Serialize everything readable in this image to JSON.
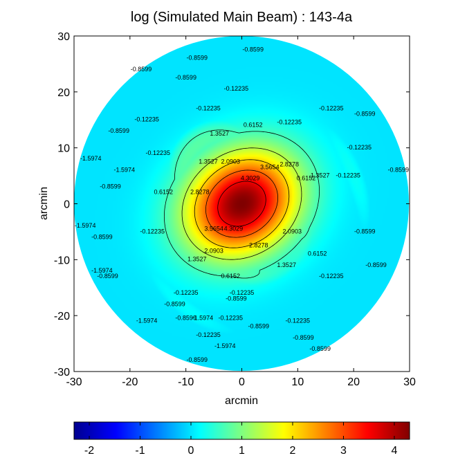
{
  "chart_data": {
    "type": "heatmap",
    "title": "log (Simulated Main Beam) : 143-4a",
    "xlabel": "arcmin",
    "ylabel": "arcmin",
    "xlim": [
      -30,
      30
    ],
    "ylim": [
      -30,
      30
    ],
    "xticks": [
      "-30",
      "-20",
      "-10",
      "0",
      "10",
      "20",
      "30"
    ],
    "yticks": [
      "30",
      "20",
      "10",
      "0",
      "-10",
      "-20",
      "-30"
    ],
    "colorbar": {
      "range": [
        -2.3,
        4.3
      ],
      "ticks": [
        "-2",
        "-1",
        "0",
        "1",
        "2",
        "3",
        "4"
      ],
      "colormap": "jet",
      "placement": "bottom"
    },
    "beam": {
      "peak": 4.3,
      "center": [
        0,
        0
      ],
      "radius_arcmin": 30,
      "contour_levels": [
        -1.5974,
        -0.8599,
        -0.12235,
        0.6152,
        1.3527,
        2.0903,
        2.8278,
        3.5654,
        4.3029
      ]
    },
    "contour_labels": [
      {
        "text": "4.3029",
        "x": 1.5,
        "y": 4.5
      },
      {
        "text": "4.3029",
        "x": -1.5,
        "y": -4.5
      },
      {
        "text": "3.5654",
        "x": 5,
        "y": 6.5
      },
      {
        "text": "3.5654",
        "x": -5,
        "y": -4.5
      },
      {
        "text": "2.8278",
        "x": 8.5,
        "y": 7
      },
      {
        "text": "2.8278",
        "x": -7.5,
        "y": 2
      },
      {
        "text": "2.8278",
        "x": 3,
        "y": -7.5
      },
      {
        "text": "2.0903",
        "x": -2,
        "y": 7.5
      },
      {
        "text": "2.0903",
        "x": -5,
        "y": -8.5
      },
      {
        "text": "2.0903",
        "x": 9,
        "y": -5
      },
      {
        "text": "1.3527",
        "x": -4,
        "y": 12.5
      },
      {
        "text": "1.3527",
        "x": -6,
        "y": 7.5
      },
      {
        "text": "1.3527",
        "x": 14,
        "y": 5
      },
      {
        "text": "1.3527",
        "x": -8,
        "y": -10
      },
      {
        "text": "1.3527",
        "x": 8,
        "y": -11
      },
      {
        "text": "0.6152",
        "x": 2,
        "y": 14
      },
      {
        "text": "0.6152",
        "x": -14,
        "y": 2
      },
      {
        "text": "0.6152",
        "x": 11.5,
        "y": 4.5
      },
      {
        "text": "0.6152",
        "x": -2,
        "y": -13
      },
      {
        "text": "0.6152",
        "x": 13.5,
        "y": -9
      },
      {
        "text": "-0.12235",
        "x": -1,
        "y": 20.5
      },
      {
        "text": "-0.12235",
        "x": -6,
        "y": 17
      },
      {
        "text": "-0.12235",
        "x": -17,
        "y": 15
      },
      {
        "text": "-0.12235",
        "x": -15,
        "y": 9
      },
      {
        "text": "-0.12235",
        "x": 16,
        "y": 17
      },
      {
        "text": "-0.12235",
        "x": 8.5,
        "y": 14.5
      },
      {
        "text": "-0.12235",
        "x": 21,
        "y": 10
      },
      {
        "text": "-0.12235",
        "x": 19,
        "y": 5
      },
      {
        "text": "-0.12235",
        "x": -16,
        "y": -5
      },
      {
        "text": "-0.12235",
        "x": 16,
        "y": -13
      },
      {
        "text": "-0.12235",
        "x": -10,
        "y": -16
      },
      {
        "text": "-0.12235",
        "x": 0,
        "y": -16
      },
      {
        "text": "-0.12235",
        "x": -2,
        "y": -20.5
      },
      {
        "text": "-0.12235",
        "x": 10,
        "y": -21
      },
      {
        "text": "-0.12235",
        "x": -6,
        "y": -23.5
      },
      {
        "text": "-0.8599",
        "x": 2,
        "y": 27.5
      },
      {
        "text": "-0.8599",
        "x": -8,
        "y": 26
      },
      {
        "text": "-0.8599",
        "x": -18,
        "y": 24
      },
      {
        "text": "-0.8599",
        "x": -10,
        "y": 22.5
      },
      {
        "text": "-0.8599",
        "x": -22,
        "y": 13
      },
      {
        "text": "-0.8599",
        "x": -23.5,
        "y": 3
      },
      {
        "text": "-0.8599",
        "x": -25,
        "y": -6
      },
      {
        "text": "-0.8599",
        "x": -24,
        "y": -13
      },
      {
        "text": "-0.8599",
        "x": 22,
        "y": 16
      },
      {
        "text": "-0.8599",
        "x": 28,
        "y": 6
      },
      {
        "text": "-0.8599",
        "x": 22,
        "y": -5
      },
      {
        "text": "-0.8599",
        "x": 24,
        "y": -11
      },
      {
        "text": "-0.8599",
        "x": -12,
        "y": -18
      },
      {
        "text": "-0.8599",
        "x": -1,
        "y": -17
      },
      {
        "text": "-0.8599",
        "x": 3,
        "y": -22
      },
      {
        "text": "-0.8599",
        "x": -10,
        "y": -20.5
      },
      {
        "text": "-0.8599",
        "x": 11,
        "y": -24
      },
      {
        "text": "-0.8599",
        "x": -8,
        "y": -28
      },
      {
        "text": "-0.8599",
        "x": 14,
        "y": -26
      },
      {
        "text": "-1.5974",
        "x": -27,
        "y": 8
      },
      {
        "text": "-1.5974",
        "x": -28,
        "y": -4
      },
      {
        "text": "-1.5974",
        "x": -21,
        "y": 6
      },
      {
        "text": "-1.5974",
        "x": -25,
        "y": -12
      },
      {
        "text": "-1.5974",
        "x": -7,
        "y": -20.5
      },
      {
        "text": "-1.5974",
        "x": -17,
        "y": -21
      },
      {
        "text": "-1.5974",
        "x": -3,
        "y": -25.5
      }
    ]
  },
  "colors": {
    "background": "#ffffff",
    "axis": "#000000",
    "contour": "#000000"
  }
}
